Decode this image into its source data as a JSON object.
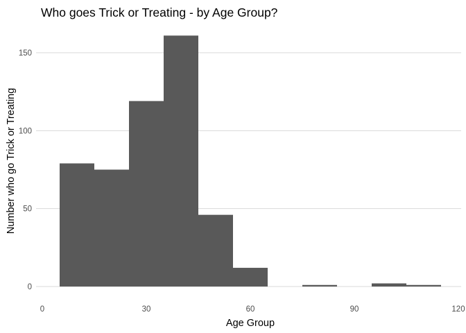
{
  "chart_data": {
    "type": "bar",
    "title": "Who goes Trick or Treating - by Age Group?",
    "xlabel": "Age Group",
    "ylabel": "Number who go Trick or Treating",
    "xlim": [
      0,
      120
    ],
    "ylim": [
      0,
      160
    ],
    "x_ticks": [
      0,
      30,
      60,
      90,
      120
    ],
    "y_ticks": [
      0,
      50,
      100,
      150
    ],
    "bin_width": 10,
    "bins": [
      {
        "x0": 5,
        "x1": 15,
        "count": 79
      },
      {
        "x0": 15,
        "x1": 25,
        "count": 75
      },
      {
        "x0": 25,
        "x1": 35,
        "count": 119
      },
      {
        "x0": 35,
        "x1": 45,
        "count": 161
      },
      {
        "x0": 45,
        "x1": 55,
        "count": 46
      },
      {
        "x0": 55,
        "x1": 65,
        "count": 12
      },
      {
        "x0": 65,
        "x1": 75,
        "count": 0
      },
      {
        "x0": 75,
        "x1": 85,
        "count": 1
      },
      {
        "x0": 85,
        "x1": 95,
        "count": 0
      },
      {
        "x0": 95,
        "x1": 105,
        "count": 2
      },
      {
        "x0": 105,
        "x1": 115,
        "count": 1
      }
    ],
    "grid": "horizontal",
    "colors": {
      "bar": "#595959",
      "grid": "#d9d9d9",
      "tick_text": "#4d4d4d"
    }
  }
}
